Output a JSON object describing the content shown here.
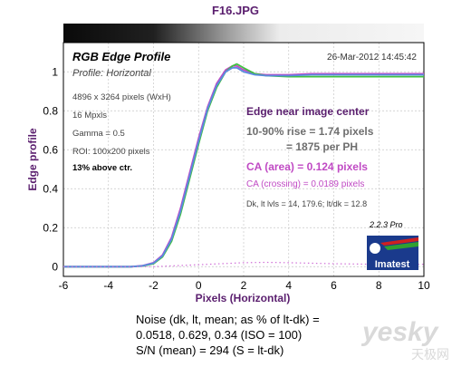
{
  "header": {
    "filename": "F16.JPG"
  },
  "chart_data": {
    "type": "line",
    "title": "RGB Edge Profile",
    "subtitle": "Profile: Horizontal",
    "timestamp": "26-Mar-2012 14:45:42",
    "xlabel": "Pixels (Horizontal)",
    "ylabel": "Edge profile",
    "xlim": [
      -6,
      10
    ],
    "ylim": [
      -0.05,
      1.15
    ],
    "xticks": [
      "-6",
      "-4",
      "-2",
      "0",
      "2",
      "4",
      "6",
      "8",
      "10"
    ],
    "yticks": [
      "0",
      "0.2",
      "0.4",
      "0.6",
      "0.8",
      "1"
    ],
    "grid": true,
    "series": [
      {
        "color": "#c04ac4",
        "x": [
          -6,
          -3,
          -2.5,
          -2,
          -1.6,
          -1.2,
          -0.8,
          -0.4,
          0,
          0.4,
          0.8,
          1.2,
          1.5,
          1.7,
          2,
          2.5,
          3,
          4,
          5,
          6,
          8,
          10
        ],
        "y": [
          0,
          0,
          0.005,
          0.02,
          0.06,
          0.15,
          0.3,
          0.48,
          0.66,
          0.82,
          0.94,
          1.01,
          1.03,
          1.03,
          1.01,
          0.99,
          0.985,
          0.985,
          0.99,
          0.99,
          0.99,
          0.99
        ]
      },
      {
        "color": "#40c040",
        "x": [
          -6,
          -3,
          -2.5,
          -2,
          -1.6,
          -1.2,
          -0.8,
          -0.4,
          0,
          0.4,
          0.8,
          1.2,
          1.5,
          1.7,
          2,
          2.5,
          3,
          4,
          5,
          6,
          8,
          10
        ],
        "y": [
          0,
          0,
          0.003,
          0.015,
          0.05,
          0.13,
          0.27,
          0.45,
          0.63,
          0.8,
          0.92,
          1.0,
          1.03,
          1.04,
          1.02,
          0.99,
          0.98,
          0.975,
          0.975,
          0.975,
          0.975,
          0.975
        ]
      },
      {
        "color": "#5a8ae0",
        "x": [
          -6,
          -3,
          -2.5,
          -2,
          -1.6,
          -1.2,
          -0.8,
          -0.4,
          0,
          0.4,
          0.8,
          1.2,
          1.5,
          1.7,
          2,
          2.5,
          3,
          4,
          5,
          6,
          8,
          10
        ],
        "y": [
          0,
          0,
          0.004,
          0.018,
          0.055,
          0.14,
          0.285,
          0.465,
          0.645,
          0.81,
          0.93,
          1.0,
          1.02,
          1.02,
          1.0,
          0.985,
          0.98,
          0.98,
          0.985,
          0.985,
          0.985,
          0.985
        ]
      },
      {
        "color": "#d070d8",
        "dotted": true,
        "x": [
          -6,
          -2,
          -1,
          0,
          1,
          2,
          3,
          4,
          6,
          8,
          10
        ],
        "y": [
          0,
          0,
          0.005,
          0.01,
          0.015,
          0.02,
          0.022,
          0.02,
          0.015,
          0.012,
          0.012
        ]
      }
    ]
  },
  "info": {
    "pixels": "4896 x 3264 pixels (WxH)",
    "mpxls": "16 Mpxls",
    "gamma": "Gamma = 0.5",
    "roi": "ROI: 100x200 pixels",
    "above_ctr": "13% above ctr."
  },
  "results": {
    "edge_location": "Edge near image center",
    "rise": "10-90% rise = 1.74 pixels",
    "per_ph": "= 1875 per PH",
    "ca_area": "CA (area) = 0.124 pixels",
    "ca_crossing": "CA (crossing) = 0.0189 pixels",
    "dk_lt": "Dk, lt lvls = 14, 179.6;  lt/dk = 12.8"
  },
  "logo": {
    "version": "2.2.3  Pro",
    "brand": "Imatest"
  },
  "noise": {
    "line1": "Noise (dk, lt, mean; as % of lt-dk) =",
    "line2": "0.0518,  0.629,  0.34  (ISO =  100)",
    "line3": "S/N (mean) = 294  (S = lt-dk)"
  },
  "watermark": {
    "brand": "yesky",
    "sub": "天极网"
  },
  "colors": {
    "title_purple": "#5a1e6e",
    "ca_violet": "#c04ac4",
    "grid": "#c8c8c8"
  }
}
